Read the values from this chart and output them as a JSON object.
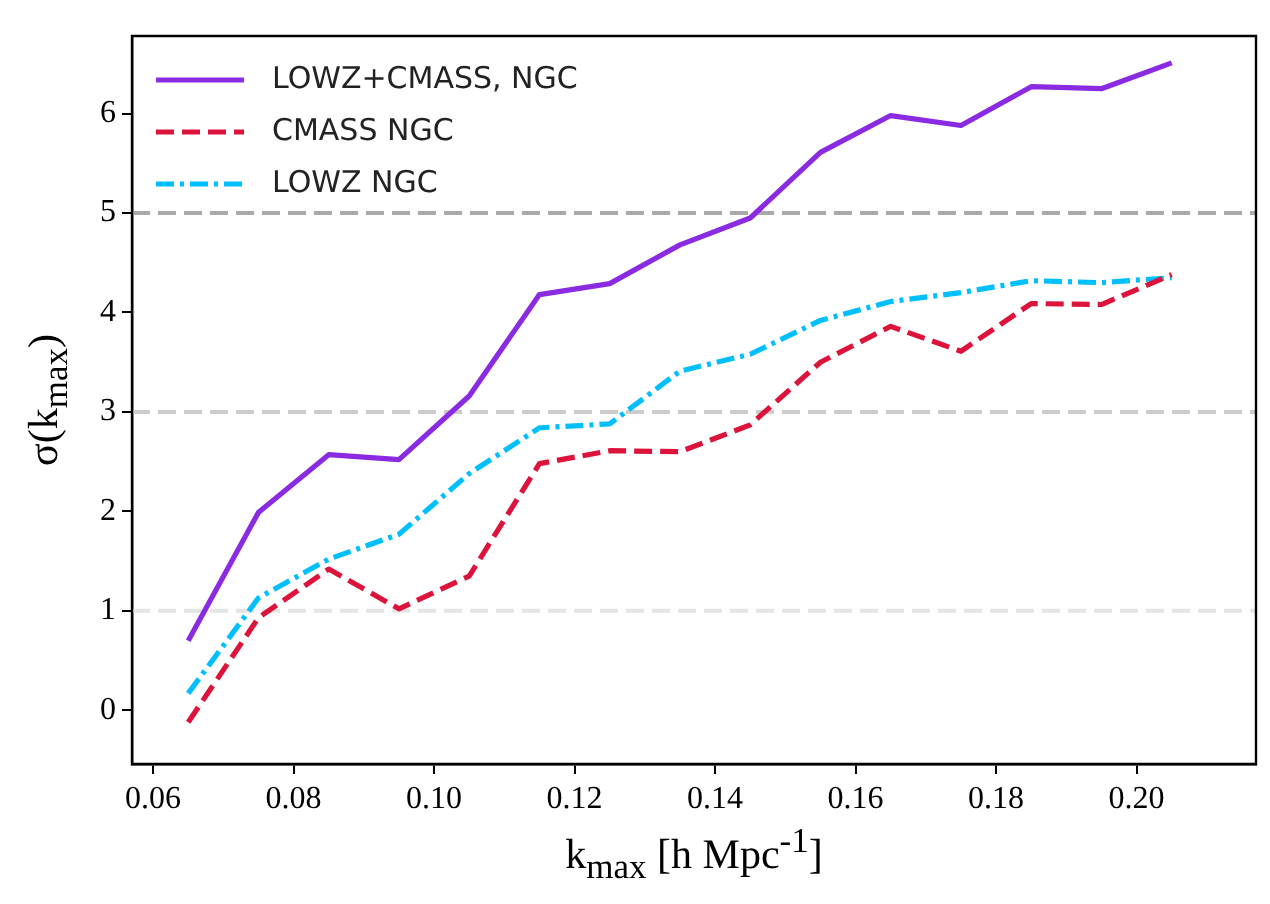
{
  "chart_data": {
    "type": "line",
    "xlabel": "k$_{max}$ [h Mpc$^{-1}$]",
    "ylabel": "σ(k$_{max}$)",
    "x": [
      0.065,
      0.075,
      0.085,
      0.095,
      0.105,
      0.115,
      0.125,
      0.135,
      0.145,
      0.155,
      0.165,
      0.175,
      0.185,
      0.195,
      0.205
    ],
    "series": [
      {
        "name": "LOWZ+CMASS, NGC",
        "color": "#8a2be2",
        "line_style": "solid",
        "values": [
          0.7,
          1.99,
          2.57,
          2.52,
          3.16,
          4.18,
          4.29,
          4.68,
          4.95,
          5.61,
          5.98,
          5.88,
          6.27,
          6.25,
          6.51
        ]
      },
      {
        "name": "CMASS NGC",
        "color": "#dc143c",
        "line_style": "dashed",
        "values": [
          -0.12,
          0.93,
          1.42,
          1.02,
          1.35,
          2.48,
          2.61,
          2.6,
          2.87,
          3.5,
          3.86,
          3.61,
          4.09,
          4.08,
          4.38
        ]
      },
      {
        "name": "LOWZ NGC",
        "color": "#00bfff",
        "line_style": "dashdot",
        "values": [
          0.17,
          1.13,
          1.52,
          1.77,
          2.38,
          2.84,
          2.88,
          3.41,
          3.58,
          3.92,
          4.11,
          4.2,
          4.32,
          4.3,
          4.35
        ]
      }
    ],
    "xlim": [
      0.057,
      0.217
    ],
    "ylim": [
      -0.54,
      6.78
    ],
    "xticks": [
      {
        "value": 0.06,
        "label": "0.06"
      },
      {
        "value": 0.08,
        "label": "0.08"
      },
      {
        "value": 0.1,
        "label": "0.10"
      },
      {
        "value": 0.12,
        "label": "0.12"
      },
      {
        "value": 0.14,
        "label": "0.14"
      },
      {
        "value": 0.16,
        "label": "0.16"
      },
      {
        "value": 0.18,
        "label": "0.18"
      },
      {
        "value": 0.2,
        "label": "0.20"
      }
    ],
    "yticks": [
      0,
      1,
      2,
      3,
      4,
      5,
      6
    ],
    "ref_lines": [
      {
        "axis": "y",
        "value": 5,
        "color": "#aaaaaa",
        "line_style": "dashed"
      },
      {
        "axis": "y",
        "value": 3,
        "color": "#cccccc",
        "line_style": "dashed"
      },
      {
        "axis": "y",
        "value": 1,
        "color": "#e5e5e5",
        "line_style": "dashed"
      }
    ],
    "legend": "top left",
    "grid": false
  }
}
